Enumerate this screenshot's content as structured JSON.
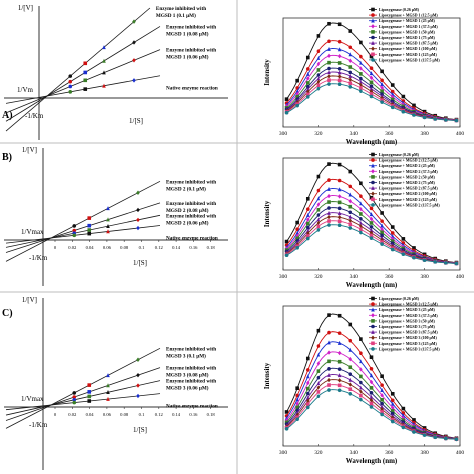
{
  "panel_labels": [
    "A)",
    "B)",
    "C)"
  ],
  "colors": {
    "kinetic_line": "#1a1a1a",
    "frame": "#333333",
    "divider": "#bdbdbd",
    "red": "#d01010",
    "black": "#111111",
    "blue": "#1a2fd0",
    "magenta": "#d020c8",
    "green": "#3a7d28",
    "navy": "#1a2070",
    "purple": "#6a1a9a",
    "brown": "#7a2a14",
    "pink": "#e04080",
    "teal": "#1a7a8a"
  },
  "chart_data": [
    {
      "type": "line",
      "panel": "A)",
      "subtype": "lineweaver-burk",
      "ylabel": "1/[V]",
      "xlabel": "1/[S]",
      "intercept_labels": [
        "1/Vm",
        "-1/Km"
      ],
      "x_tick_labels": [],
      "series": [
        {
          "name": "Enzyme inhibited with MGSD 1 (0.1 µM)",
          "slope": 1.0
        },
        {
          "name": "Enzyme inhibited with MGSD 1 (0.08 µM)",
          "slope": 0.72
        },
        {
          "name": "Enzyme inhibited with MGSD 1 (0.06 µM)",
          "slope": 0.48
        },
        {
          "name": "Native enzyme reaction",
          "slope": 0.21
        }
      ]
    },
    {
      "type": "line",
      "panel": "A)",
      "subtype": "fluorescence-spectra",
      "ylabel": "Intensity",
      "xlabel": "Wavelength (nm)",
      "x": [
        300,
        320,
        340,
        360,
        380,
        400
      ],
      "xlim": [
        300,
        400
      ],
      "peak_wavelength": 328,
      "legend": [
        "Lipoxygenase (0.26 µM)",
        "Lipoxygenase + MGSD 1 (12.5 µM)",
        "Lipoxygenase + MGSD 1 (25 µM)",
        "Lipoxygenase + MGSD 1 (37.5 µM)",
        "Lipoxygenase + MGSD 1 (50 µM)",
        "Lipoxygenase + MGSD 1 (75 µM)",
        "Lipoxygenase + MGSD 1 (87.5 µM)",
        "Lipoxygenase + MGSD 1 (100 µM)",
        "Lipoxygenase + MGSD 1 (125 µM)",
        "Lipoxygenase + MGSD 1 (137.5 µM)"
      ],
      "peak_intensity_fraction": [
        1.0,
        0.82,
        0.74,
        0.67,
        0.6,
        0.54,
        0.5,
        0.46,
        0.42,
        0.38
      ]
    },
    {
      "type": "line",
      "panel": "B)",
      "subtype": "lineweaver-burk",
      "ylabel": "1/[V]",
      "xlabel": "1/[S]",
      "intercept_labels": [
        "1/Vmax",
        "-1/Km"
      ],
      "x_tick_labels": [
        "0",
        "0.02",
        "0.04",
        "0.06",
        "0.08",
        "0.1",
        "0.12",
        "0.14",
        "0.16",
        "0.18"
      ],
      "series": [
        {
          "name": "Enzyme inhibited with MGSD 2 (0.1 µM)",
          "slope": 1.0
        },
        {
          "name": "Enzyme inhibited with MGSD 2 (0.08 µM)",
          "slope": 0.62
        },
        {
          "name": "Enzyme inhibited with MGSD 2 (0.06 µM)",
          "slope": 0.4
        },
        {
          "name": "Native enzyme reaction",
          "slope": 0.22
        }
      ]
    },
    {
      "type": "line",
      "panel": "B)",
      "subtype": "fluorescence-spectra",
      "ylabel": "Intensity",
      "xlabel": "Wavelength (nm)",
      "x": [
        300,
        320,
        340,
        360,
        380,
        400
      ],
      "xlim": [
        300,
        400
      ],
      "peak_wavelength": 328,
      "legend": [
        "Lipoxygenase (0.26 µM)",
        "Lipoxygenase + MGSD 2 (12.5 µM)",
        "Lipoxygenase + MGSD 2 (25 µM)",
        "Lipoxygenase + MGSD 2 (37.5 µM)",
        "Lipoxygenase + MGSD 2 (50 µM)",
        "Lipoxygenase + MGSD 2 (75 µM)",
        "Lipoxygenase + MGSD 2 (87.5 µM)",
        "Lipoxygenase + MGSD 2 (100 µM)",
        "Lipoxygenase + MGSD 2 (125 µM)",
        "Lipoxygenase + MGSD 2 (137.5 µM)"
      ],
      "peak_intensity_fraction": [
        1.0,
        0.84,
        0.75,
        0.68,
        0.62,
        0.56,
        0.51,
        0.47,
        0.43,
        0.39
      ]
    },
    {
      "type": "line",
      "panel": "C)",
      "subtype": "lineweaver-burk",
      "ylabel": "1/[V]",
      "xlabel": "1/[S]",
      "intercept_labels": [
        "1/Vmax",
        "-1/Km"
      ],
      "x_tick_labels": [
        "0",
        "0.02",
        "0.04",
        "0.06",
        "0.08",
        "0.1",
        "0.12",
        "0.14",
        "0.16",
        "0.18"
      ],
      "series": [
        {
          "name": "Enzyme inhibited with MGSD 3 (0.1 µM)",
          "slope": 1.0
        },
        {
          "name": "Enzyme inhibited with MGSD 3 (0.08 µM)",
          "slope": 0.66
        },
        {
          "name": "Enzyme inhibited with MGSD 3 (0.06 µM)",
          "slope": 0.43
        },
        {
          "name": "Native enzyme reaction",
          "slope": 0.2
        }
      ]
    },
    {
      "type": "line",
      "panel": "C)",
      "subtype": "fluorescence-spectra",
      "ylabel": "Intensity",
      "xlabel": "Wavelength (nm)",
      "x": [
        300,
        320,
        340,
        360,
        380,
        400
      ],
      "xlim": [
        300,
        400
      ],
      "peak_wavelength": 328,
      "legend": [
        "Lipoxygenase (0.26 µM)",
        "Lipoxygenase + MGSD 3 (12.5 µM)",
        "Lipoxygenase + MGSD 3 (25 µM)",
        "Lipoxygenase + MGSD 3 (37.5 µM)",
        "Lipoxygenase + MGSD 3 (50 µM)",
        "Lipoxygenase + MGSD 3 (75 µM)",
        "Lipoxygenase + MGSD 3 (87.5 µM)",
        "Lipoxygenase + MGSD 3 (100 µM)",
        "Lipoxygenase + MGSD 3 (125 µM)",
        "Lipoxygenase + MGSD 3 (137.5 µM)"
      ],
      "peak_intensity_fraction": [
        1.0,
        0.86,
        0.78,
        0.7,
        0.63,
        0.57,
        0.52,
        0.48,
        0.44,
        0.4
      ]
    }
  ]
}
